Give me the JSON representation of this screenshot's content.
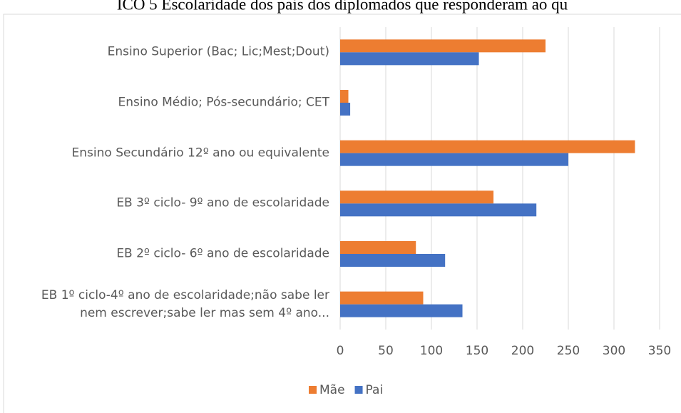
{
  "chart_data": {
    "type": "hbar",
    "title": "ICO 5 Escolaridade dos pais dos diplomados que responderam ao qu",
    "categories": [
      "Ensino Superior (Bac; Lic;Mest;Dout)",
      "Ensino Médio; Pós-secundário; CET",
      "Ensino Secundário 12º ano ou equivalente",
      "EB 3º ciclo- 9º ano de escolaridade",
      "EB 2º ciclo- 6º ano de escolaridade",
      "EB 1º ciclo-4º ano de escolaridade;não sabe ler nem escrever;sabe ler mas sem 4º ano..."
    ],
    "series": [
      {
        "name": "Mãe",
        "color": "#ed7d31",
        "values": [
          225,
          9,
          323,
          168,
          83,
          91
        ]
      },
      {
        "name": "Pai",
        "color": "#4472c4",
        "values": [
          152,
          11,
          250,
          215,
          115,
          134
        ]
      }
    ],
    "xlim": [
      0,
      350
    ],
    "xticks": [
      0,
      50,
      100,
      150,
      200,
      250,
      300,
      350
    ],
    "grid": true,
    "legend": "bottom"
  }
}
